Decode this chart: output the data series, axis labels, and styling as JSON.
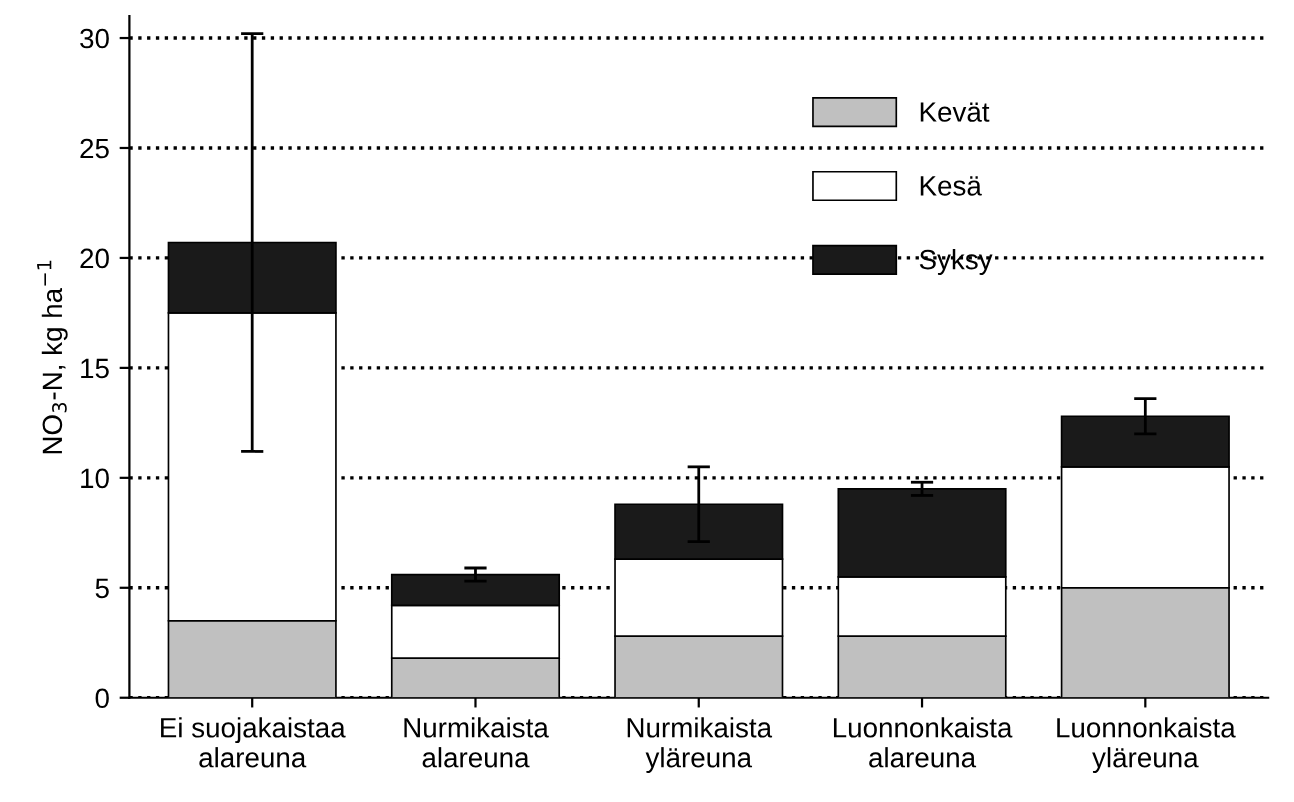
{
  "chart_data": {
    "type": "bar",
    "stacked": true,
    "categories": [
      "Ei suojakaistaa\nalareuna",
      "Nurmikaista\nalareuna",
      "Nurmikaista\nyläreuna",
      "Luonnonkaista\nalareuna",
      "Luonnonkaista\nyläreuna"
    ],
    "series": [
      {
        "name": "Kevät",
        "color": "#c0c0c0",
        "values": [
          3.5,
          1.8,
          2.8,
          2.8,
          5.0
        ]
      },
      {
        "name": "Kesä",
        "color": "#ffffff",
        "values": [
          14.0,
          2.4,
          3.5,
          2.7,
          5.5
        ]
      },
      {
        "name": "Syksy",
        "color": "#1a1a1a",
        "values": [
          3.2,
          1.4,
          2.5,
          4.0,
          2.3
        ],
        "errors": [
          9.5,
          0.3,
          1.7,
          0.3,
          0.8
        ]
      }
    ],
    "ylabel": "NO$_{3}$-N, kg ha$^{−1}$",
    "ylim": [
      0,
      31
    ],
    "yticks": [
      0,
      5,
      10,
      15,
      20,
      25,
      30
    ],
    "grid": "y",
    "legend": "right"
  }
}
